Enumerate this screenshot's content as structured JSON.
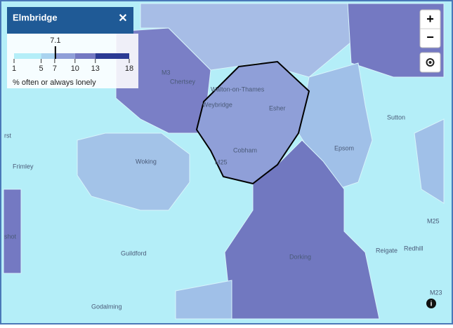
{
  "header": {
    "title": "Elmbridge",
    "close": "✕"
  },
  "legend": {
    "value": 7.1,
    "ticks": [
      1,
      5,
      7,
      10,
      13,
      18
    ],
    "colors": [
      "#b4eef8",
      "#a9d3ef",
      "#8f9fd8",
      "#7479c2",
      "#2b3a94"
    ],
    "label": "% often or always lonely"
  },
  "controls": {
    "zoom_in": "+",
    "zoom_out": "−",
    "info": "i"
  },
  "places": [
    "Chertsey",
    "Walton-on-Thames",
    "Weybridge",
    "Esher",
    "Cobham",
    "Woking",
    "Frimley",
    "Epsom",
    "Sutton",
    "Guildford",
    "Dorking",
    "Reigate",
    "Redhill",
    "Godalming",
    "M3",
    "M25",
    "M25",
    "M23",
    "rst",
    "shot"
  ]
}
